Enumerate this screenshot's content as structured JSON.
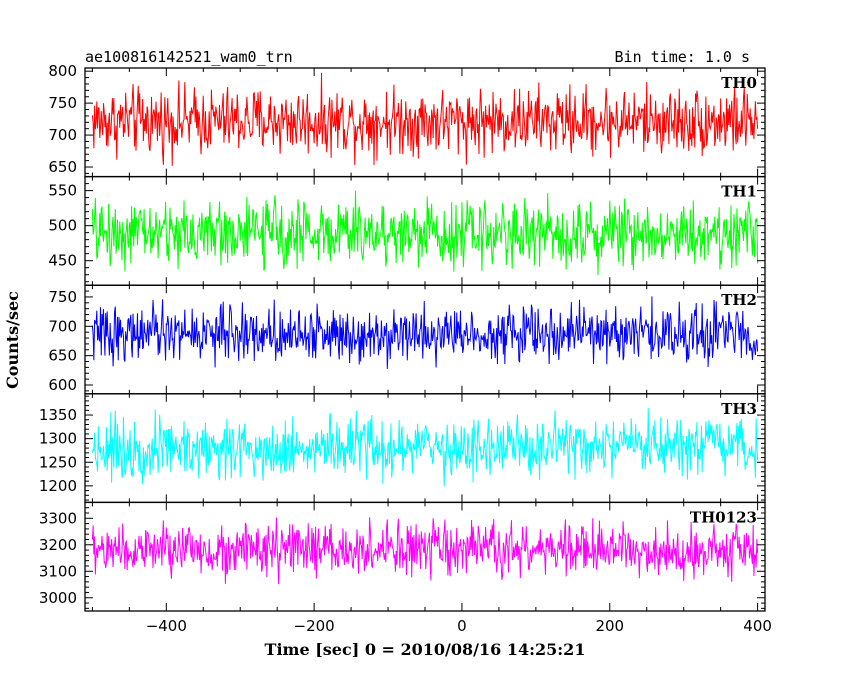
{
  "header": {
    "title": "ae100816142521_wam0_trn",
    "bin_time": "Bin time: 1.0 s"
  },
  "chart_data": {
    "type": "line",
    "xlabel": "Time [sec] 0 = 2010/08/16 14:25:21",
    "ylabel": "Counts/sec",
    "xlim": [
      -510,
      410
    ],
    "xticks": [
      -400,
      -200,
      0,
      200,
      400
    ],
    "xtick_labels": [
      "−400",
      "−200",
      "0",
      "200",
      "400"
    ],
    "x_start": -500,
    "x_end": 400,
    "bin_time": 1.0,
    "grid": false,
    "series": [
      {
        "name": "TH0",
        "color": "#ff0000",
        "ylim": [
          635,
          805
        ],
        "yticks": [
          650,
          700,
          750,
          800
        ],
        "mean": 722,
        "amplitude": 45,
        "min": 640,
        "max": 805
      },
      {
        "name": "TH1",
        "color": "#00ff00",
        "ylim": [
          415,
          570
        ],
        "yticks": [
          450,
          500,
          550
        ],
        "mean": 490,
        "amplitude": 40,
        "min": 420,
        "max": 570
      },
      {
        "name": "TH2",
        "color": "#0000ff",
        "ylim": [
          585,
          770
        ],
        "yticks": [
          600,
          650,
          700,
          750
        ],
        "mean": 688,
        "amplitude": 40,
        "min": 595,
        "max": 770
      },
      {
        "name": "TH3",
        "color": "#00ffff",
        "ylim": [
          1165,
          1395
        ],
        "yticks": [
          1200,
          1250,
          1300,
          1350
        ],
        "mean": 1280,
        "amplitude": 55,
        "min": 1170,
        "max": 1395
      },
      {
        "name": "TH0123",
        "color": "#ff00ff",
        "ylim": [
          2950,
          3360
        ],
        "yticks": [
          3000,
          3100,
          3200,
          3300
        ],
        "mean": 3180,
        "amplitude": 85,
        "min": 2960,
        "max": 3360
      }
    ]
  }
}
